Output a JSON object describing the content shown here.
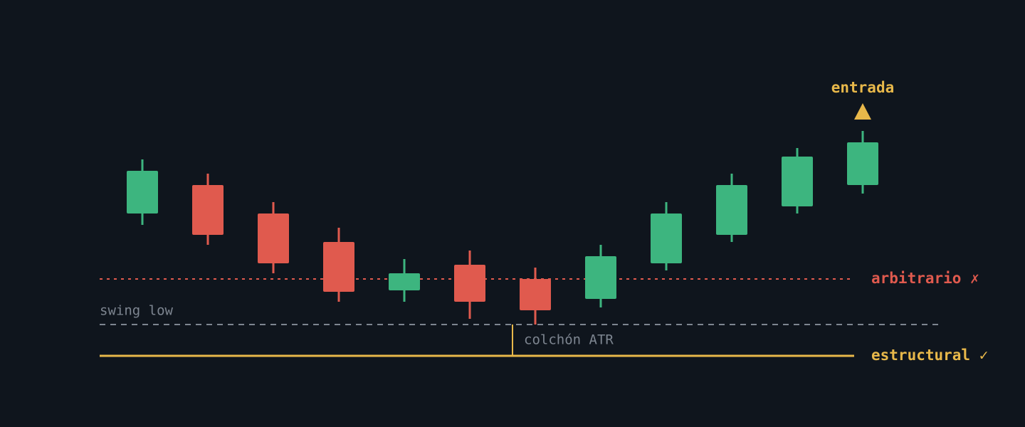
{
  "chart_data": {
    "type": "candlestick",
    "up_color": "#3db57f",
    "down_color": "#e05a4e",
    "ylim": [
      -10,
      50
    ],
    "open": [
      20,
      24,
      20,
      16,
      9.2,
      12.8,
      10.8,
      8,
      13,
      17,
      21,
      24
    ],
    "close": [
      26,
      17,
      13,
      9,
      11.6,
      7.6,
      6.4,
      14,
      20,
      24,
      28,
      30
    ],
    "high": [
      27.6,
      25.6,
      21.6,
      18,
      13.6,
      14.8,
      12.4,
      15.6,
      21.6,
      25.6,
      29.2,
      31.6
    ],
    "low": [
      18.4,
      15.6,
      11.6,
      7.6,
      7.6,
      5.2,
      4.4,
      6.8,
      12,
      16,
      20,
      22.8
    ],
    "entry_label": "entrada",
    "entry_color": "#e8b84a",
    "levels": [
      {
        "label": "arbitrario ✗",
        "value": 10.8,
        "color": "#e05a4e",
        "style": "dotted"
      },
      {
        "label": "swing low",
        "value": 4.4,
        "color": "#7d8590",
        "style": "dashed"
      },
      {
        "label": "estructural ✓",
        "value": 0,
        "color": "#e8b84a",
        "style": "solid"
      }
    ],
    "cushion_label": "colchón ATR"
  }
}
